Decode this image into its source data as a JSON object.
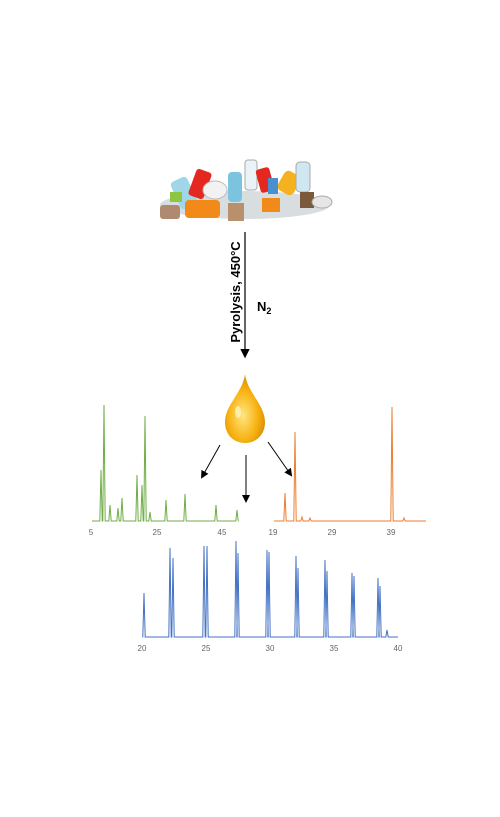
{
  "process": {
    "condition": "Pyrolysis, 450°C",
    "atmosphere": "N",
    "atmosphere_subscript": "2"
  },
  "chromatograms": [
    {
      "ticks": [
        5,
        25,
        45
      ]
    },
    {
      "ticks": [
        19,
        29,
        39
      ]
    },
    {
      "ticks": [
        20,
        25,
        30,
        35,
        40
      ]
    }
  ]
}
